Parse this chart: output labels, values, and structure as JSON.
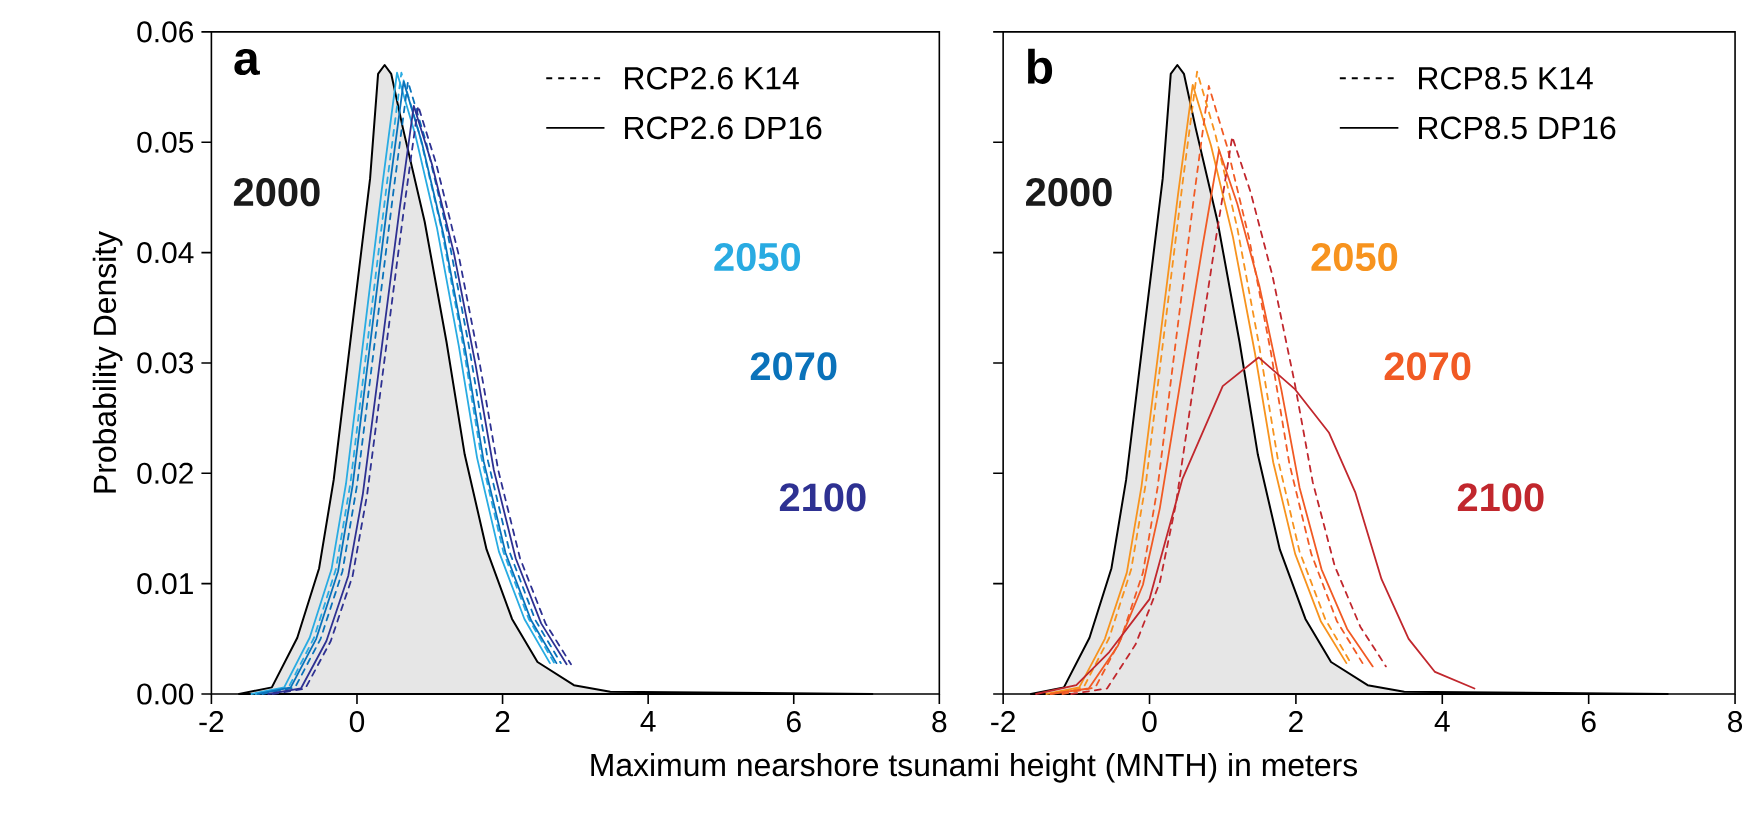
{
  "chart_data": [
    {
      "type": "line",
      "title": "a",
      "xlabel": "Maximum nearshore tsunami height (MNTH) in meters",
      "ylabel": "Probability Density",
      "xlim": [
        -2,
        8
      ],
      "ylim": [
        0,
        0.06
      ],
      "xticks": [
        -2,
        0,
        2,
        4,
        6,
        8
      ],
      "yticks": [
        {
          "value": 0,
          "label": "0.00"
        },
        {
          "value": 0.01,
          "label": "0.01"
        },
        {
          "value": 0.02,
          "label": "0.02"
        },
        {
          "value": 0.03,
          "label": "0.03"
        },
        {
          "value": 0.04,
          "label": "0.04"
        },
        {
          "value": 0.05,
          "label": "0.05"
        },
        {
          "value": 0.06,
          "label": "0.06"
        }
      ],
      "series": [
        {
          "type": "area",
          "color": "#e6e6e6",
          "x": [
            -1.62,
            -1.17,
            -0.82,
            -0.52,
            -0.32,
            -0.07,
            0.18,
            0.29,
            0.38,
            0.47,
            0.63,
            0.93,
            1.23,
            1.48,
            1.78,
            2.13,
            2.48,
            2.98,
            3.48,
            7.08
          ],
          "values": [
            0,
            0.0006,
            0.0051,
            0.0114,
            0.0194,
            0.0331,
            0.0467,
            0.0562,
            0.057,
            0.0562,
            0.0513,
            0.0428,
            0.0319,
            0.0217,
            0.0131,
            0.0068,
            0.0029,
            0.0008,
            0.0002,
            0
          ]
        },
        {
          "color": "#29abe2",
          "line_style": "solid",
          "x": [
            -1.45,
            -1.0,
            -0.65,
            -0.35,
            -0.15,
            0.1,
            0.35,
            0.55,
            0.8,
            1.1,
            1.4,
            1.65,
            1.95,
            2.3,
            2.65
          ],
          "values": [
            0,
            0.0006,
            0.0051,
            0.0113,
            0.0191,
            0.0327,
            0.0462,
            0.0563,
            0.0507,
            0.0422,
            0.0315,
            0.0214,
            0.0129,
            0.0068,
            0.0028
          ]
        },
        {
          "color": "#29abe2",
          "line_style": "dashed",
          "x": [
            -1.39,
            -0.94,
            -0.59,
            -0.29,
            -0.09,
            0.16,
            0.41,
            0.61,
            0.86,
            1.16,
            1.46,
            1.71,
            2.01,
            2.36,
            2.71
          ],
          "values": [
            0,
            0.0006,
            0.0051,
            0.0113,
            0.0191,
            0.0327,
            0.0462,
            0.0563,
            0.0507,
            0.0422,
            0.0315,
            0.0214,
            0.0129,
            0.0068,
            0.0028
          ]
        },
        {
          "color": "#0a72ba",
          "line_style": "solid",
          "x": [
            -1.36,
            -0.91,
            -0.56,
            -0.26,
            -0.06,
            0.19,
            0.44,
            0.64,
            0.89,
            1.19,
            1.49,
            1.74,
            2.04,
            2.39,
            2.74
          ],
          "values": [
            0,
            0.0006,
            0.005,
            0.0111,
            0.0189,
            0.0322,
            0.0455,
            0.0555,
            0.05,
            0.0416,
            0.0311,
            0.0211,
            0.0128,
            0.0067,
            0.0028
          ]
        },
        {
          "color": "#0a72ba",
          "line_style": "dashed",
          "x": [
            -1.3,
            -0.85,
            -0.5,
            -0.2,
            0,
            0.25,
            0.5,
            0.7,
            0.95,
            1.25,
            1.55,
            1.8,
            2.1,
            2.45,
            2.8
          ],
          "values": [
            0,
            0.0006,
            0.005,
            0.0111,
            0.0189,
            0.0322,
            0.0455,
            0.0555,
            0.05,
            0.0416,
            0.0311,
            0.0211,
            0.0128,
            0.0067,
            0.0028
          ]
        },
        {
          "color": "#2e3192",
          "line_style": "solid",
          "x": [
            -1.22,
            -0.77,
            -0.42,
            -0.12,
            0.08,
            0.33,
            0.58,
            0.78,
            1.03,
            1.33,
            1.63,
            1.88,
            2.18,
            2.53,
            2.88
          ],
          "values": [
            0,
            0.0005,
            0.0048,
            0.0107,
            0.0181,
            0.0309,
            0.0437,
            0.0533,
            0.048,
            0.04,
            0.0298,
            0.0203,
            0.0123,
            0.0064,
            0.0027
          ]
        },
        {
          "color": "#2e3192",
          "line_style": "dashed",
          "x": [
            -1.16,
            -0.71,
            -0.36,
            -0.06,
            0.14,
            0.39,
            0.64,
            0.84,
            1.09,
            1.39,
            1.69,
            1.94,
            2.24,
            2.59,
            2.94
          ],
          "values": [
            0,
            0.0005,
            0.0048,
            0.0107,
            0.0181,
            0.0309,
            0.0437,
            0.0533,
            0.048,
            0.04,
            0.0298,
            0.0203,
            0.0123,
            0.0064,
            0.0027
          ]
        }
      ],
      "annotations": [
        "RCP2.6 K14",
        "RCP2.6 DP16",
        "2000",
        "2050",
        "2070",
        "2100"
      ]
    },
    {
      "type": "line",
      "title": "b",
      "tick_labels": "x",
      "xlim": [
        -2,
        8
      ],
      "ylim": [
        0,
        0.06
      ],
      "xticks": [
        -2,
        0,
        2,
        4,
        6,
        8
      ],
      "yticks": [
        {
          "value": 0,
          "label": null
        },
        {
          "value": 0.01,
          "label": null
        },
        {
          "value": 0.02,
          "label": null
        },
        {
          "value": 0.03,
          "label": null
        },
        {
          "value": 0.04,
          "label": null
        },
        {
          "value": 0.05,
          "label": null
        },
        {
          "value": 0.06,
          "label": null
        }
      ],
      "series": [
        {
          "type": "area",
          "color": "#e6e6e6",
          "x": [
            -1.62,
            -1.17,
            -0.82,
            -0.52,
            -0.32,
            -0.07,
            0.18,
            0.29,
            0.38,
            0.47,
            0.63,
            0.93,
            1.23,
            1.48,
            1.78,
            2.13,
            2.48,
            2.98,
            3.48,
            7.08
          ],
          "values": [
            0,
            0.0006,
            0.0051,
            0.0114,
            0.0194,
            0.0331,
            0.0467,
            0.0562,
            0.057,
            0.0562,
            0.0513,
            0.0428,
            0.0319,
            0.0217,
            0.0131,
            0.0068,
            0.0029,
            0.0008,
            0.0002,
            0
          ]
        },
        {
          "color": "#f7931e",
          "line_style": "solid",
          "x": [
            -1.41,
            -0.96,
            -0.61,
            -0.31,
            -0.11,
            0.14,
            0.39,
            0.59,
            0.84,
            1.14,
            1.44,
            1.69,
            1.99,
            2.34,
            2.69
          ],
          "values": [
            0,
            0.0006,
            0.005,
            0.011,
            0.0188,
            0.032,
            0.0453,
            0.0552,
            0.0497,
            0.0414,
            0.0309,
            0.021,
            0.0127,
            0.0066,
            0.0028
          ]
        },
        {
          "color": "#f7931e",
          "line_style": "dashed",
          "x": [
            -1.35,
            -0.9,
            -0.55,
            -0.25,
            -0.05,
            0.2,
            0.45,
            0.65,
            0.9,
            1.2,
            1.5,
            1.75,
            2.05,
            2.4,
            2.75
          ],
          "values": [
            0,
            0.0006,
            0.0051,
            0.0113,
            0.0191,
            0.0327,
            0.0462,
            0.0564,
            0.0507,
            0.0422,
            0.0315,
            0.0214,
            0.0129,
            0.0068,
            0.0028
          ]
        },
        {
          "color": "#f15a24",
          "line_style": "solid",
          "x": [
            -1.35,
            -0.83,
            -0.43,
            -0.09,
            0.14,
            0.43,
            0.72,
            0.95,
            1.2,
            1.5,
            1.8,
            2.05,
            2.35,
            2.7,
            3.05
          ],
          "values": [
            0,
            0.0005,
            0.0044,
            0.0099,
            0.0168,
            0.0286,
            0.0404,
            0.0493,
            0.0444,
            0.037,
            0.0276,
            0.0187,
            0.0113,
            0.0059,
            0.0025
          ]
        },
        {
          "color": "#f15a24",
          "line_style": "dashed",
          "x": [
            -1.19,
            -0.74,
            -0.39,
            -0.09,
            0.11,
            0.36,
            0.61,
            0.81,
            1.06,
            1.36,
            1.66,
            1.91,
            2.21,
            2.56,
            2.91
          ],
          "values": [
            0,
            0.0006,
            0.005,
            0.011,
            0.0187,
            0.032,
            0.0452,
            0.0551,
            0.0496,
            0.0413,
            0.0309,
            0.0209,
            0.0127,
            0.0066,
            0.0028
          ]
        },
        {
          "color": "#c1272d",
          "line_style": "solid",
          "x": [
            -1.55,
            -1.0,
            -0.55,
            0,
            0.45,
            1.0,
            1.49,
            1.99,
            2.45,
            2.81,
            3.17,
            3.54,
            3.9,
            4.44
          ],
          "values": [
            0,
            0.0008,
            0.0038,
            0.0086,
            0.0195,
            0.0279,
            0.0305,
            0.0276,
            0.0237,
            0.0183,
            0.0104,
            0.005,
            0.002,
            0.0005
          ]
        },
        {
          "color": "#c1272d",
          "line_style": "dashed",
          "x": [
            -1.07,
            -0.58,
            -0.19,
            0.14,
            0.36,
            0.63,
            0.91,
            1.13,
            1.38,
            1.68,
            1.98,
            2.23,
            2.53,
            2.88,
            3.23
          ],
          "values": [
            0,
            0.0005,
            0.0045,
            0.0101,
            0.0172,
            0.0293,
            0.0414,
            0.0505,
            0.0455,
            0.0379,
            0.0283,
            0.0192,
            0.0116,
            0.0061,
            0.0025
          ]
        }
      ],
      "annotations": [
        "RCP8.5 K14",
        "RCP8.5 DP16",
        "2000",
        "2050",
        "2070",
        "2100"
      ]
    }
  ]
}
